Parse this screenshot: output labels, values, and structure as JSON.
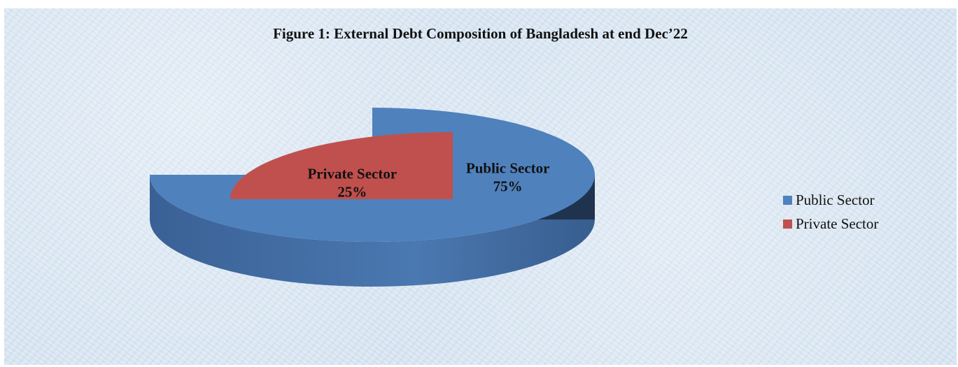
{
  "chart_data": {
    "type": "pie",
    "style": "3d-exploded",
    "title": "Figure 1: External Debt Composition of Bangladesh at end Dec’22",
    "categories": [
      "Public Sector",
      "Private Sector"
    ],
    "values": [
      75,
      25
    ],
    "unit": "%",
    "data_labels": [
      "Public Sector 75%",
      "Private Sector 25%"
    ],
    "colors": [
      "#4f81bd",
      "#c0504d"
    ],
    "legend_position": "right"
  }
}
